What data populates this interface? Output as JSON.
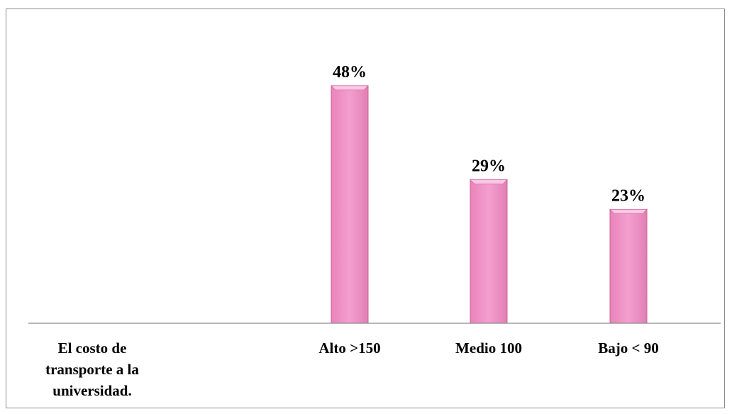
{
  "chart_data": {
    "type": "bar",
    "row_label": [
      "El costo de",
      "transporte a la",
      "universidad."
    ],
    "categories": [
      "Alto >150",
      "Medio 100",
      "Bajo < 90"
    ],
    "values": [
      48,
      29,
      23
    ],
    "data_labels": [
      "48%",
      "29%",
      "23%"
    ],
    "unit": "%",
    "ylim": [
      0,
      55
    ],
    "grid": false,
    "legend": "none",
    "bar_color": "#f49fcf",
    "bar_top_color": "#fcc6e6",
    "bar_edge_color": "#c8648f"
  }
}
